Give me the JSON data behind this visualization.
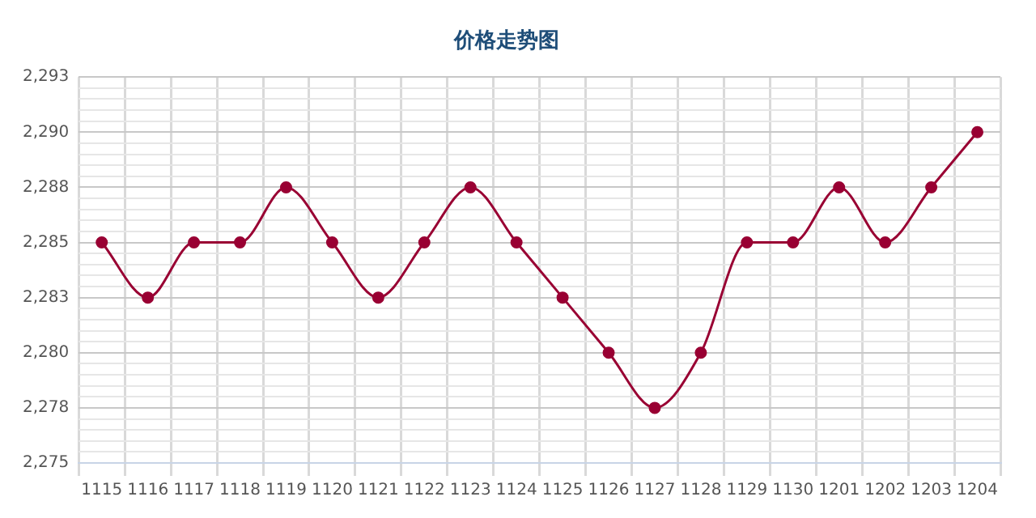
{
  "chart_data": {
    "type": "line",
    "title": "价格走势图",
    "categories": [
      "1115",
      "1116",
      "1117",
      "1118",
      "1119",
      "1120",
      "1121",
      "1122",
      "1123",
      "1124",
      "1125",
      "1126",
      "1127",
      "1128",
      "1129",
      "1130",
      "1201",
      "1202",
      "1203",
      "1204"
    ],
    "series": [
      {
        "color": "#990033",
        "values": [
          2285,
          2282.5,
          2285,
          2285,
          2287.5,
          2285,
          2282.5,
          2285,
          2287.5,
          2285,
          2282.5,
          2280,
          2277.5,
          2280,
          2285,
          2285,
          2287.5,
          2285,
          2287.5,
          2290
        ]
      }
    ],
    "ylim": [
      2275,
      2292.5
    ],
    "yticks": [
      {
        "value": 2275,
        "label": "2,275"
      },
      {
        "value": 2275.5,
        "label": null
      },
      {
        "value": 2276,
        "label": null
      },
      {
        "value": 2276.5,
        "label": null
      },
      {
        "value": 2277,
        "label": null
      },
      {
        "value": 2277.5,
        "label": "2,278"
      },
      {
        "value": 2278,
        "label": null
      },
      {
        "value": 2278.5,
        "label": null
      },
      {
        "value": 2279,
        "label": null
      },
      {
        "value": 2279.5,
        "label": null
      },
      {
        "value": 2280,
        "label": "2,280"
      },
      {
        "value": 2280.5,
        "label": null
      },
      {
        "value": 2281,
        "label": null
      },
      {
        "value": 2281.5,
        "label": null
      },
      {
        "value": 2282,
        "label": null
      },
      {
        "value": 2282.5,
        "label": "2,283"
      },
      {
        "value": 2283,
        "label": null
      },
      {
        "value": 2283.5,
        "label": null
      },
      {
        "value": 2284,
        "label": null
      },
      {
        "value": 2284.5,
        "label": null
      },
      {
        "value": 2285,
        "label": "2,285"
      },
      {
        "value": 2285.5,
        "label": null
      },
      {
        "value": 2286,
        "label": null
      },
      {
        "value": 2286.5,
        "label": null
      },
      {
        "value": 2287,
        "label": null
      },
      {
        "value": 2287.5,
        "label": "2,288"
      },
      {
        "value": 2288,
        "label": null
      },
      {
        "value": 2288.5,
        "label": null
      },
      {
        "value": 2289,
        "label": null
      },
      {
        "value": 2289.5,
        "label": null
      },
      {
        "value": 2290,
        "label": "2,290"
      },
      {
        "value": 2290.5,
        "label": null
      },
      {
        "value": 2291,
        "label": null
      },
      {
        "value": 2291.5,
        "label": null
      },
      {
        "value": 2292,
        "label": null
      },
      {
        "value": 2292.5,
        "label": "2,293"
      }
    ],
    "grid": true,
    "marker": "circle",
    "line_style": "solid",
    "legend": false
  }
}
